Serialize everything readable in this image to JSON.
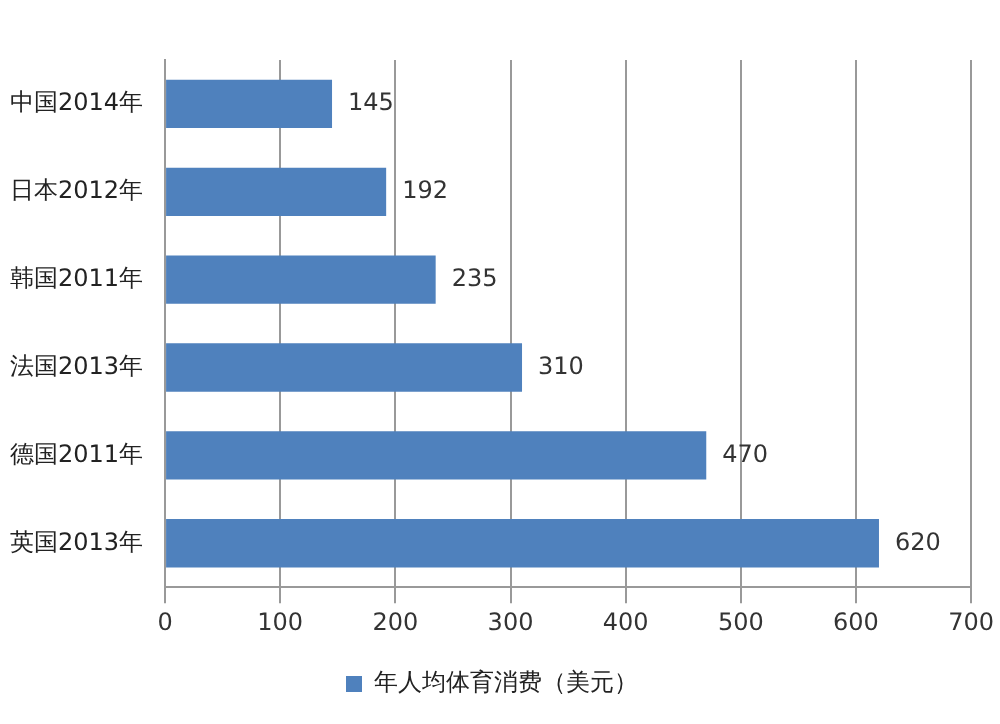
{
  "chart_data": {
    "type": "bar",
    "orientation": "horizontal",
    "categories": [
      "中国2014年",
      "日本2012年",
      "韩国2011年",
      "法国2013年",
      "德国2011年",
      "英国2013年"
    ],
    "series": [
      {
        "name": "年人均体育消费（美元）",
        "color": "#4f81bd",
        "values": [
          145,
          192,
          235,
          310,
          470,
          620
        ]
      }
    ],
    "xlim": [
      0,
      700
    ],
    "xticks": [
      0,
      100,
      200,
      300,
      400,
      500,
      600,
      700
    ],
    "grid": "x",
    "legend": "bottom",
    "data_labels": true
  }
}
